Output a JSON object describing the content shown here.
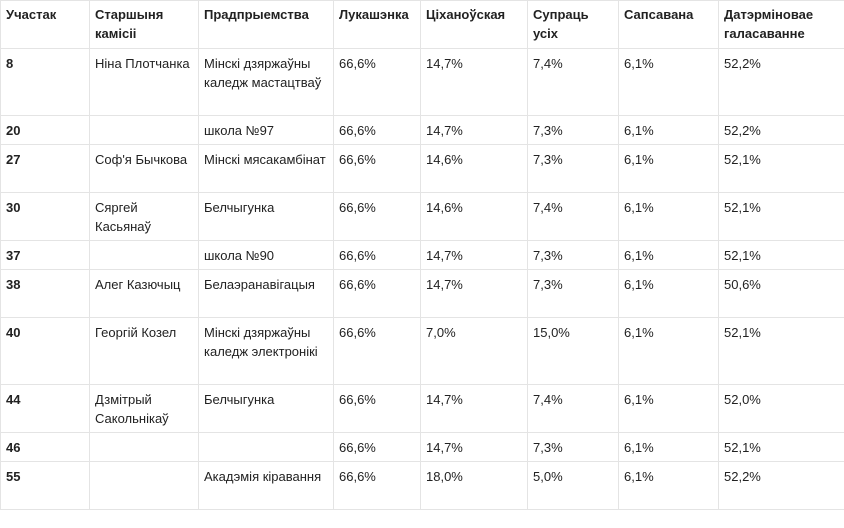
{
  "headers": [
    "Участак",
    "Старшыня камісіі",
    "Прадпрыемства",
    "Лукашэнка",
    "Ціханоўская",
    "Супраць усіх",
    "Сапсавана",
    "Датэрміновае галасаванне"
  ],
  "rows": [
    {
      "num": "8",
      "chair": "Ніна Плотчанка",
      "org": "Мінскі дзяржаўны каледж мастацтваў",
      "luk": "66,6%",
      "tsikh": "14,7%",
      "against": "7,4%",
      "spoiled": "6,1%",
      "early": "52,2%"
    },
    {
      "num": "20",
      "chair": "",
      "org": "школа №97",
      "luk": "66,6%",
      "tsikh": "14,7%",
      "against": "7,3%",
      "spoiled": "6,1%",
      "early": "52,2%"
    },
    {
      "num": "27",
      "chair": "Соф'я Бычкова",
      "org": "Мінскі мясакамбінат",
      "luk": "66,6%",
      "tsikh": "14,6%",
      "against": "7,3%",
      "spoiled": "6,1%",
      "early": "52,1%"
    },
    {
      "num": "30",
      "chair": "Сяргей Касьянаў",
      "org": "Белчыгунка",
      "luk": "66,6%",
      "tsikh": "14,6%",
      "against": "7,4%",
      "spoiled": "6,1%",
      "early": "52,1%"
    },
    {
      "num": "37",
      "chair": "",
      "org": "школа №90",
      "luk": "66,6%",
      "tsikh": "14,7%",
      "against": "7,3%",
      "spoiled": "6,1%",
      "early": "52,1%"
    },
    {
      "num": "38",
      "chair": "Алег Казючыц",
      "org": "Белаэранавігацыя",
      "luk": "66,6%",
      "tsikh": "14,7%",
      "against": "7,3%",
      "spoiled": "6,1%",
      "early": "50,6%"
    },
    {
      "num": "40",
      "chair": "Георгій Козел",
      "org": "Мінскі дзяржаўны каледж электронікі",
      "luk": "66,6%",
      "tsikh": "7,0%",
      "against": "15,0%",
      "spoiled": "6,1%",
      "early": "52,1%"
    },
    {
      "num": "44",
      "chair": "Дзмітрый Сакольнікаў",
      "org": "Белчыгунка",
      "luk": "66,6%",
      "tsikh": "14,7%",
      "against": "7,4%",
      "spoiled": "6,1%",
      "early": "52,0%"
    },
    {
      "num": "46",
      "chair": "",
      "org": "",
      "luk": "66,6%",
      "tsikh": "14,7%",
      "against": "7,3%",
      "spoiled": "6,1%",
      "early": "52,1%"
    },
    {
      "num": "55",
      "chair": "",
      "org": "Акадэмія кіравання",
      "luk": "66,6%",
      "tsikh": "18,0%",
      "against": "5,0%",
      "spoiled": "6,1%",
      "early": "52,2%"
    }
  ]
}
